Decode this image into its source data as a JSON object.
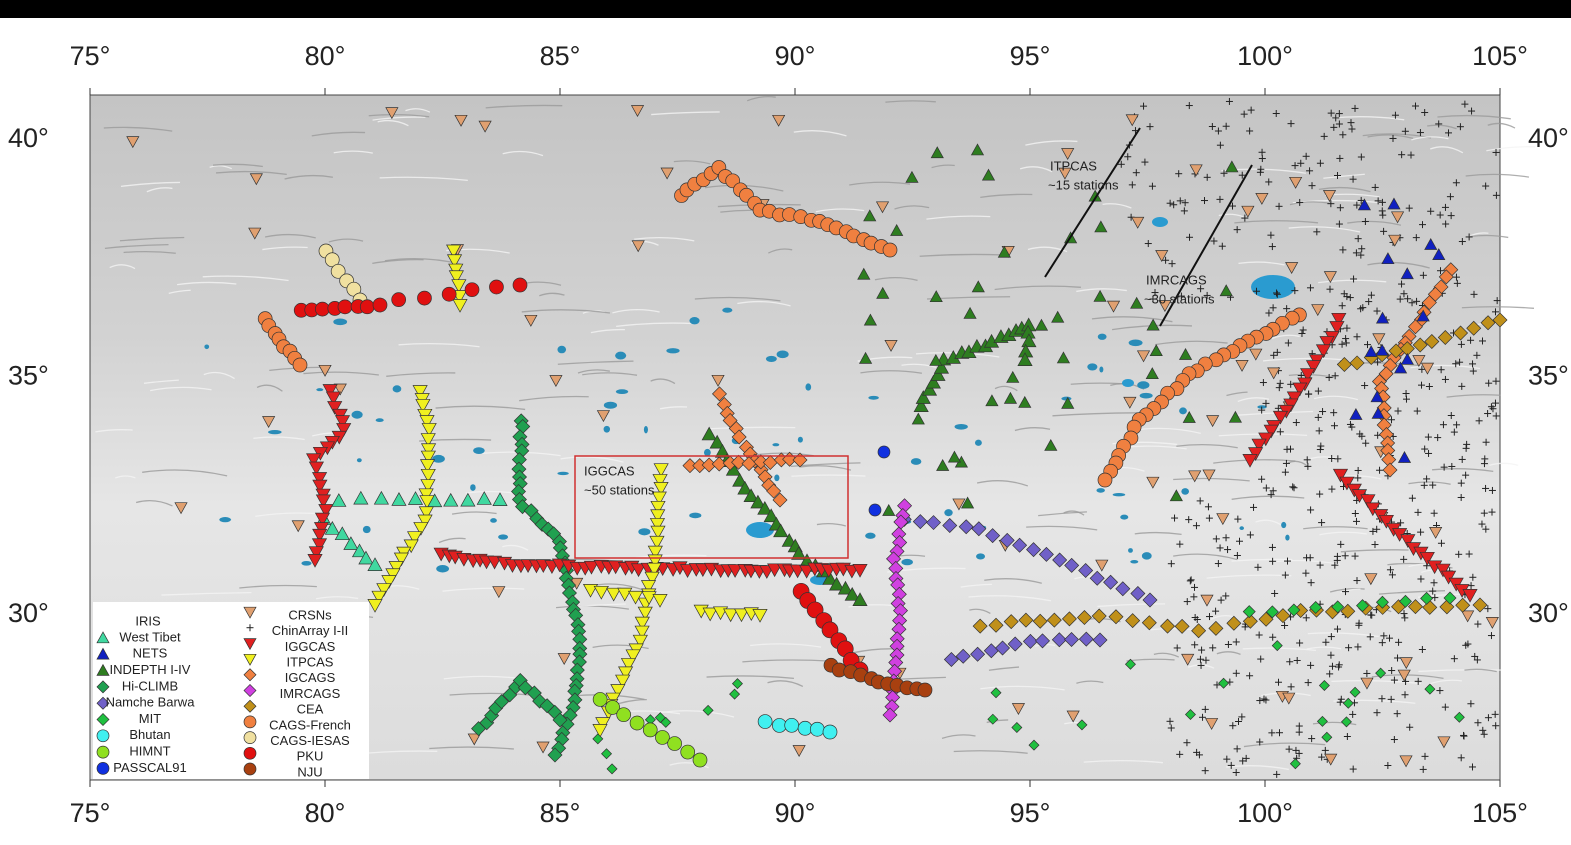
{
  "axes": {
    "top": [
      "75°",
      "80°",
      "85°",
      "90°",
      "95°",
      "100°",
      "105°"
    ],
    "bottom": [
      "75°",
      "80°",
      "85°",
      "90°",
      "95°",
      "100°",
      "105°"
    ],
    "left": [
      "40°",
      "35°",
      "30°"
    ],
    "right": [
      "40°",
      "35°",
      "30°"
    ]
  },
  "annotations": [
    {
      "name": "ITPCAS",
      "note": "~15 stations"
    },
    {
      "name": "IMRCAGS",
      "note": "~30 stations"
    },
    {
      "name": "IGGCAS",
      "note": "~50 stations"
    }
  ],
  "legend": {
    "left_header": "IRIS",
    "left": [
      "West Tibet",
      "NETS",
      "INDEPTH I-IV",
      "Hi-CLIMB",
      "Namche Barwa",
      "MIT",
      "Bhutan",
      "HIMNT",
      "PASSCAL91"
    ],
    "right": [
      "CRSNs",
      "ChinArray I-II",
      "IGGCAS",
      "ITPCAS",
      "IGCAGS",
      "IMRCAGS",
      "CEA",
      "CAGS-French",
      "CAGS-IESAS",
      "PKU",
      "NJU"
    ]
  }
}
